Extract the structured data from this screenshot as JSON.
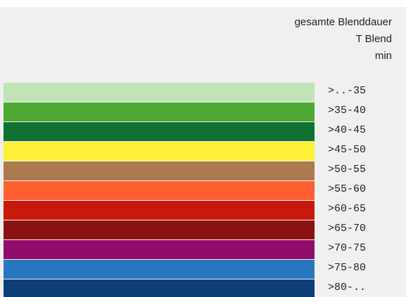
{
  "header": {
    "lines": [
      "gesamte Blenddauer",
      "T Blend",
      "min"
    ]
  },
  "legend": {
    "items": [
      {
        "label": ">..-35",
        "color": "#c2e3b5"
      },
      {
        "label": ">35-40",
        "color": "#4ea933"
      },
      {
        "label": ">40-45",
        "color": "#107131"
      },
      {
        "label": ">45-50",
        "color": "#fff13a"
      },
      {
        "label": ">50-55",
        "color": "#ab7a4f"
      },
      {
        "label": ">55-60",
        "color": "#ff5e31"
      },
      {
        "label": ">60-65",
        "color": "#c8190f"
      },
      {
        "label": ">65-70",
        "color": "#8b1211"
      },
      {
        "label": ">70-75",
        "color": "#8f0c6b"
      },
      {
        "label": ">75-80",
        "color": "#2876bd"
      },
      {
        "label": ">80-..",
        "color": "#0e3e78"
      }
    ]
  }
}
